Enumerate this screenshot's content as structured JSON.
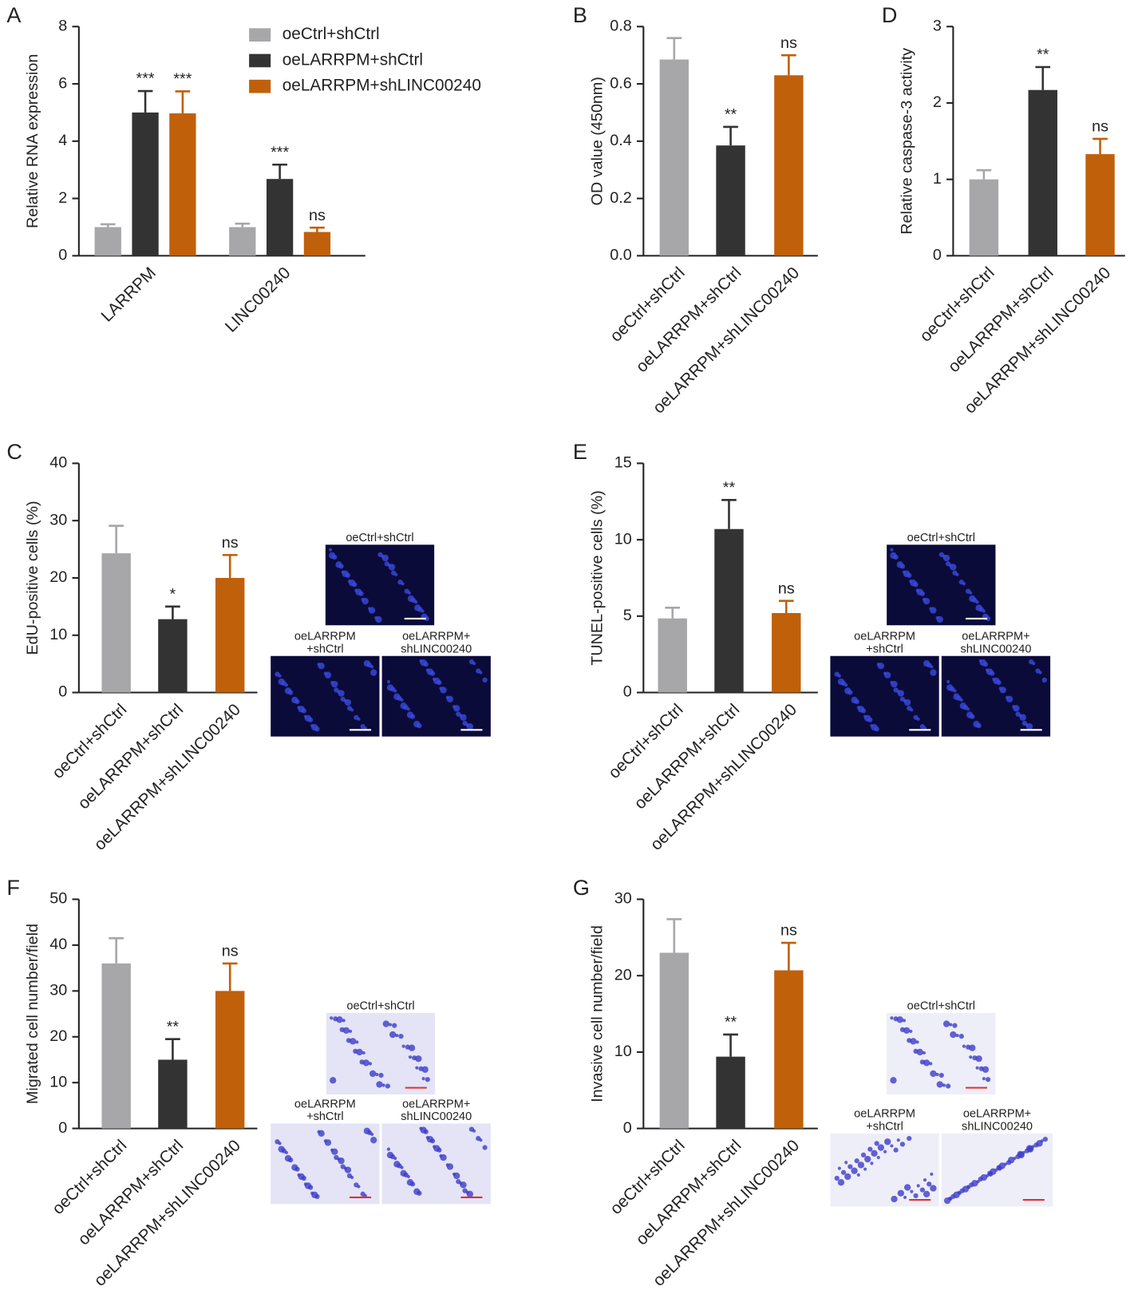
{
  "chart_data": [
    {
      "type": "grouped-bar",
      "panel": "A",
      "ylabel": "Relative RNA expression",
      "categories": [
        "LARRPM",
        "LINC00240"
      ],
      "series": [
        {
          "name": "oeCtrl+shCtrl",
          "color": "#a7a7a9",
          "values": [
            1,
            1
          ],
          "errors": [
            0.1,
            0.12
          ],
          "annotations": [
            null,
            null
          ]
        },
        {
          "name": "oeLARRPM+shCtrl",
          "color": "#333333",
          "values": [
            5.0,
            2.68
          ],
          "errors": [
            0.75,
            0.5
          ],
          "annotations": [
            "***",
            "***"
          ]
        },
        {
          "name": "oeLARRPM+shLINC00240",
          "color": "#c0600b",
          "values": [
            4.97,
            0.83
          ],
          "errors": [
            0.77,
            0.15
          ],
          "annotations": [
            "***",
            "ns"
          ]
        }
      ],
      "ylim": [
        0,
        8
      ],
      "yticks": [
        0,
        2,
        4,
        6,
        8
      ]
    },
    {
      "type": "bar",
      "panel": "B",
      "ylabel": "OD value (450nm)",
      "categories": [
        "oeCtrl+shCtrl",
        "oeLARRPM+shCtrl",
        "oeLARRPM+shLINC00240"
      ],
      "colors": [
        "#a7a7a9",
        "#333333",
        "#c0600b"
      ],
      "values": [
        0.685,
        0.385,
        0.63
      ],
      "errors": [
        0.075,
        0.065,
        0.07
      ],
      "annotations": [
        null,
        "**",
        "ns"
      ],
      "ylim": [
        0,
        0.8
      ],
      "yticks": [
        {
          "value": 0,
          "label": "0.0"
        },
        0.2,
        0.4,
        0.6,
        0.8
      ]
    },
    {
      "type": "bar",
      "panel": "D",
      "ylabel": "Relative caspase-3 activity",
      "categories": [
        "oeCtrl+shCtrl",
        "oeLARRPM+shCtrl",
        "oeLARRPM+shLINC00240"
      ],
      "colors": [
        "#a7a7a9",
        "#333333",
        "#c0600b"
      ],
      "values": [
        1,
        2.17,
        1.33
      ],
      "errors": [
        0.12,
        0.3,
        0.2
      ],
      "annotations": [
        null,
        "**",
        "ns"
      ],
      "ylim": [
        0,
        3
      ],
      "yticks": [
        0,
        1,
        2,
        3
      ]
    },
    {
      "type": "bar",
      "panel": "C",
      "ylabel": "EdU-positive cells (%)",
      "categories": [
        "oeCtrl+shCtrl",
        "oeLARRPM+shCtrl",
        "oeLARRPM+shLINC00240"
      ],
      "colors": [
        "#a7a7a9",
        "#333333",
        "#c0600b"
      ],
      "values": [
        24.3,
        12.8,
        20
      ],
      "errors": [
        4.8,
        2.2,
        4
      ],
      "annotations": [
        null,
        "*",
        "ns"
      ],
      "ylim": [
        0,
        40
      ],
      "yticks": [
        0,
        10,
        20,
        30,
        40
      ],
      "images": [
        {
          "label": [
            "oeCtrl+shCtrl"
          ]
        },
        {
          "label": [
            "oeLARRPM",
            "+shCtrl"
          ]
        },
        {
          "label": [
            "oeLARRPM+",
            "shLINC00240"
          ]
        }
      ]
    },
    {
      "type": "bar",
      "panel": "E",
      "ylabel": "TUNEL-positive cells (%)",
      "categories": [
        "oeCtrl+shCtrl",
        "oeLARRPM+shCtrl",
        "oeLARRPM+shLINC00240"
      ],
      "colors": [
        "#a7a7a9",
        "#333333",
        "#c0600b"
      ],
      "values": [
        4.85,
        10.7,
        5.2
      ],
      "errors": [
        0.7,
        1.9,
        0.8
      ],
      "annotations": [
        null,
        "**",
        "ns"
      ],
      "ylim": [
        0,
        15
      ],
      "yticks": [
        0,
        5,
        10,
        15
      ],
      "images": [
        {
          "label": [
            "oeCtrl+shCtrl"
          ]
        },
        {
          "label": [
            "oeLARRPM",
            "+shCtrl"
          ]
        },
        {
          "label": [
            "oeLARRPM+",
            "shLINC00240"
          ]
        }
      ]
    },
    {
      "type": "bar",
      "panel": "F",
      "ylabel": "Migrated cell number/field",
      "categories": [
        "oeCtrl+shCtrl",
        "oeLARRPM+shCtrl",
        "oeLARRPM+shLINC00240"
      ],
      "colors": [
        "#a7a7a9",
        "#333333",
        "#c0600b"
      ],
      "values": [
        36,
        15,
        30
      ],
      "errors": [
        5.5,
        4.5,
        6
      ],
      "annotations": [
        null,
        "**",
        "ns"
      ],
      "ylim": [
        0,
        50
      ],
      "yticks": [
        0,
        10,
        20,
        30,
        40,
        50
      ],
      "images": [
        {
          "label": [
            "oeCtrl+shCtrl"
          ]
        },
        {
          "label": [
            "oeLARRPM",
            "+shCtrl"
          ]
        },
        {
          "label": [
            "oeLARRPM+",
            "shLINC00240"
          ]
        }
      ]
    },
    {
      "type": "bar",
      "panel": "G",
      "ylabel": "Invasive cell number/field",
      "categories": [
        "oeCtrl+shCtrl",
        "oeLARRPM+shCtrl",
        "oeLARRPM+shLINC00240"
      ],
      "colors": [
        "#a7a7a9",
        "#333333",
        "#c0600b"
      ],
      "values": [
        23,
        9.4,
        20.7
      ],
      "errors": [
        4.4,
        2.9,
        3.6
      ],
      "annotations": [
        null,
        "**",
        "ns"
      ],
      "ylim": [
        0,
        30
      ],
      "yticks": [
        0,
        10,
        20,
        30
      ],
      "images": [
        {
          "label": [
            "oeCtrl+shCtrl"
          ]
        },
        {
          "label": [
            "oeLARRPM",
            "+shCtrl"
          ]
        },
        {
          "label": [
            "oeLARRPM+",
            "shLINC00240"
          ]
        }
      ]
    }
  ]
}
